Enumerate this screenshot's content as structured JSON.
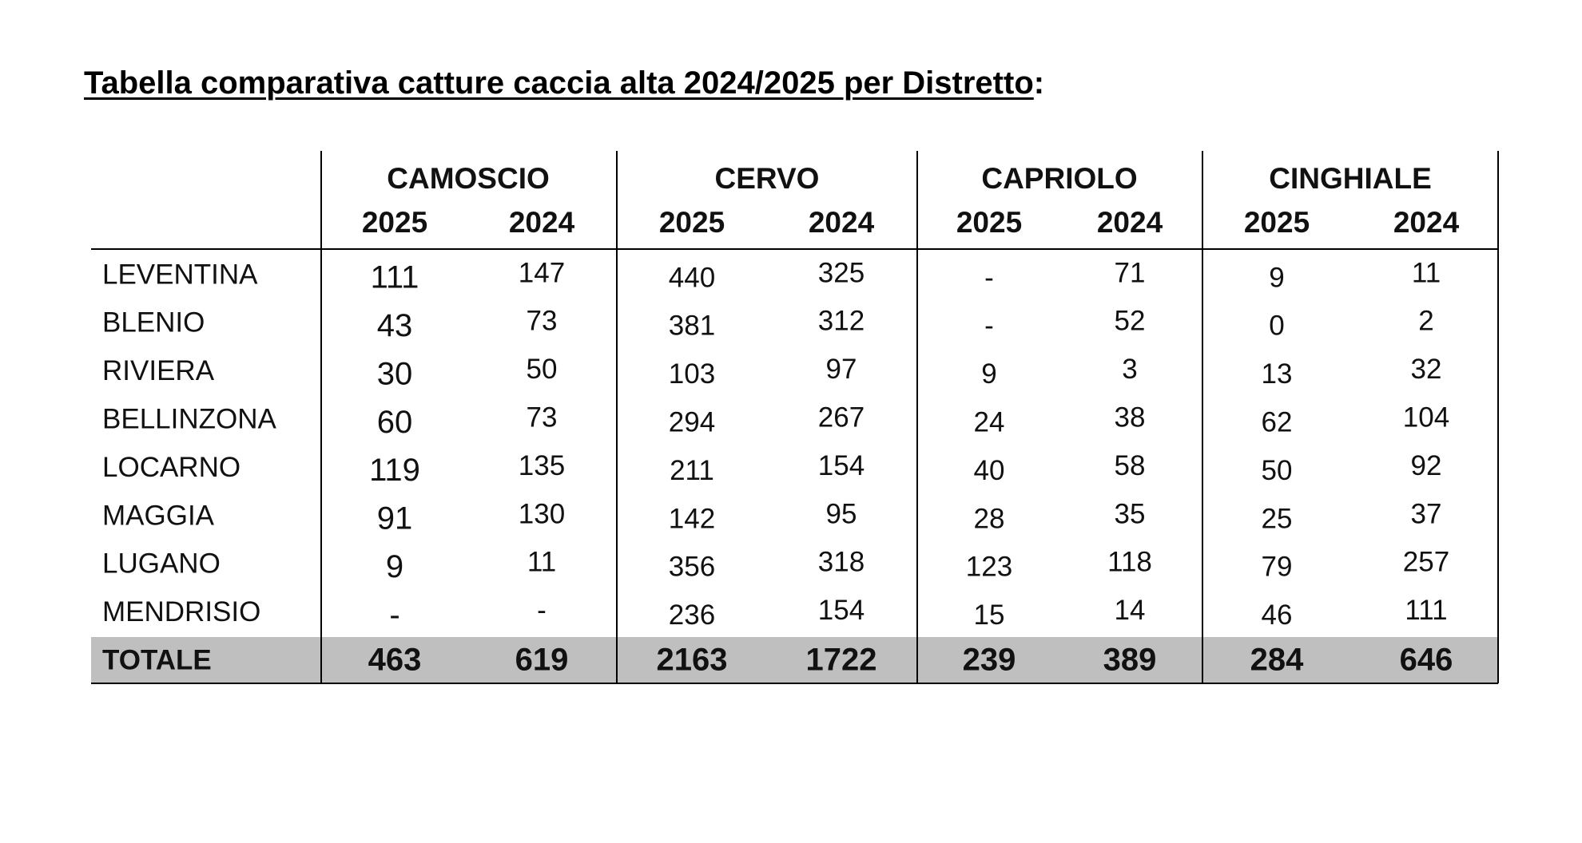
{
  "title": "Tabella comparativa catture caccia alta 2024/2025 per Distretto",
  "title_suffix": ":",
  "table": {
    "groups": [
      {
        "name": "CAMOSCIO",
        "years": [
          2025,
          2024
        ]
      },
      {
        "name": "CERVO",
        "years": [
          2025,
          2024
        ]
      },
      {
        "name": "CAPRIOLO",
        "years": [
          2025,
          2024
        ]
      },
      {
        "name": "CINGHIALE",
        "years": [
          2025,
          2024
        ]
      }
    ],
    "rows": [
      {
        "label": "LEVENTINA",
        "cells": [
          111,
          147,
          440,
          325,
          "-",
          71,
          9,
          11
        ]
      },
      {
        "label": "BLENIO",
        "cells": [
          43,
          73,
          381,
          312,
          "-",
          52,
          0,
          2
        ]
      },
      {
        "label": "RIVIERA",
        "cells": [
          30,
          50,
          103,
          97,
          9,
          3,
          13,
          32
        ]
      },
      {
        "label": "BELLINZONA",
        "cells": [
          60,
          73,
          294,
          267,
          24,
          38,
          62,
          104
        ]
      },
      {
        "label": "LOCARNO",
        "cells": [
          119,
          135,
          211,
          154,
          40,
          58,
          50,
          92
        ]
      },
      {
        "label": "MAGGIA",
        "cells": [
          91,
          130,
          142,
          95,
          28,
          35,
          25,
          37
        ]
      },
      {
        "label": "LUGANO",
        "cells": [
          9,
          11,
          356,
          318,
          123,
          118,
          79,
          257
        ]
      },
      {
        "label": "MENDRISIO",
        "cells": [
          "-",
          "-",
          236,
          154,
          15,
          14,
          46,
          111
        ]
      }
    ],
    "total": {
      "label": "TOTALE",
      "cells": [
        463,
        619,
        2163,
        1722,
        239,
        389,
        284,
        646
      ]
    }
  }
}
